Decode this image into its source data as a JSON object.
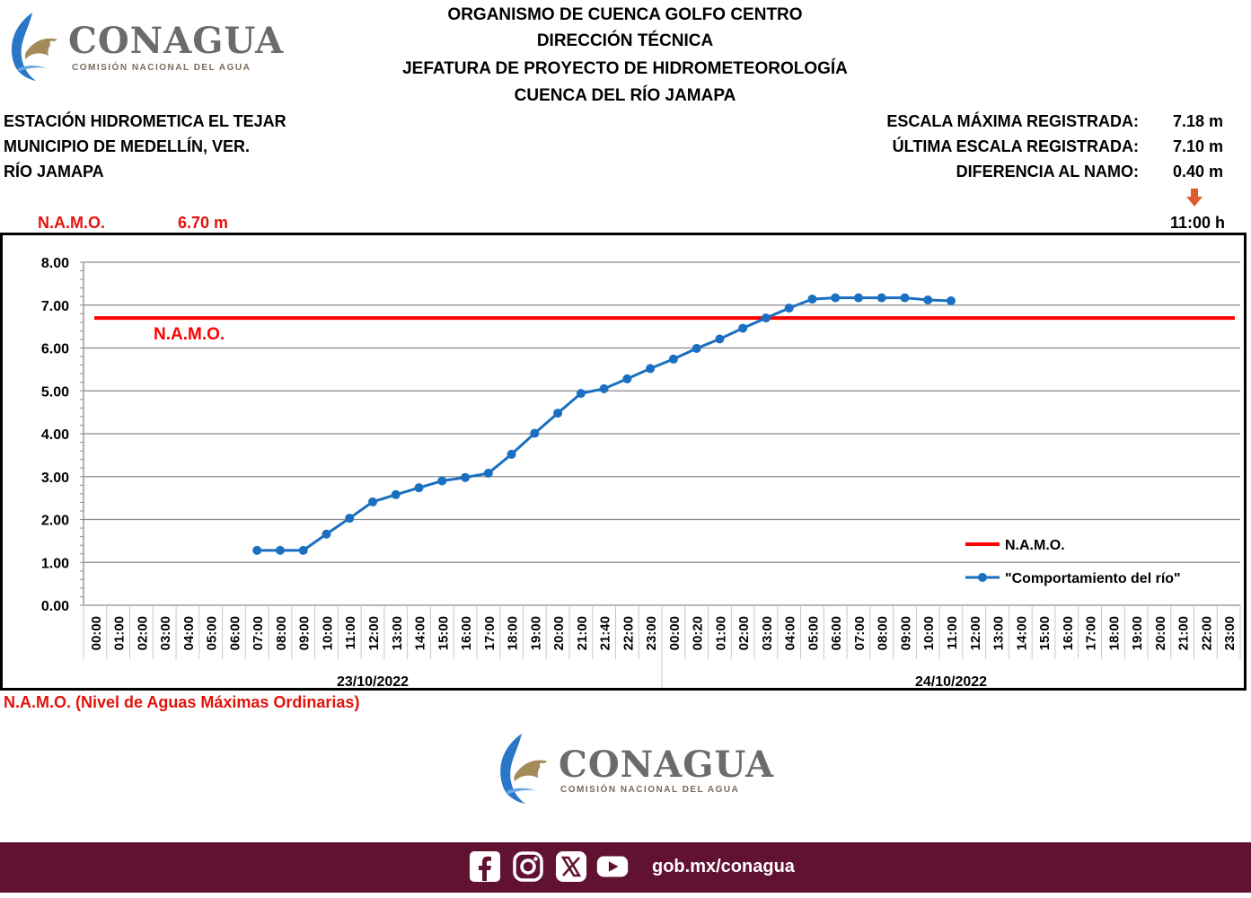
{
  "logo": {
    "word": "CONAGUA",
    "subtitle": "COMISIÓN NACIONAL DEL AGUA"
  },
  "header": {
    "line1": "ORGANISMO DE CUENCA GOLFO CENTRO",
    "line2": "DIRECCIÓN TÉCNICA",
    "line3": "JEFATURA DE PROYECTO DE HIDROMETEOROLOGÍA",
    "line4": "CUENCA DEL RÍO JAMAPA"
  },
  "station": {
    "name": "ESTACIÓN HIDROMETICA EL TEJAR",
    "municipality": "MUNICIPIO DE MEDELLÍN, VER.",
    "river": "RÍO JAMAPA"
  },
  "readings": {
    "max_label": "ESCALA MÁXIMA REGISTRADA:",
    "max_value": "7.18 m",
    "last_label": "ÚLTIMA ESCALA REGISTRADA:",
    "last_value": "7.10 m",
    "diff_label": "DIFERENCIA AL NAMO:",
    "diff_value": "0.40 m",
    "time": "11:00 h"
  },
  "namo": {
    "label": "N.A.M.O.",
    "value": "6.70 m",
    "footnote": "N.A.M.O. (Nivel de Aguas Máximas Ordinarias)"
  },
  "colors": {
    "namo_line": "#ff0000",
    "river_line": "#1a6fc0",
    "footer_bg": "#611232",
    "arrow": "#e05a2b"
  },
  "footer": {
    "url": "gob.mx/conagua",
    "icons": [
      "facebook-icon",
      "instagram-icon",
      "x-icon",
      "youtube-icon"
    ]
  },
  "chart_data": {
    "type": "line",
    "ylim": [
      0,
      8
    ],
    "yticks": [
      "0.00",
      "1.00",
      "2.00",
      "3.00",
      "4.00",
      "5.00",
      "6.00",
      "7.00",
      "8.00"
    ],
    "categories": [
      "00:00",
      "01:00",
      "02:00",
      "03:00",
      "04:00",
      "05:00",
      "06:00",
      "07:00",
      "08:00",
      "09:00",
      "10:00",
      "11:00",
      "12:00",
      "13:00",
      "14:00",
      "15:00",
      "16:00",
      "17:00",
      "18:00",
      "19:00",
      "20:00",
      "21:00",
      "21:40",
      "22:00",
      "23:00",
      "00:00",
      "00:20",
      "01:00",
      "02:00",
      "03:00",
      "04:00",
      "05:00",
      "06:00",
      "07:00",
      "08:00",
      "09:00",
      "10:00",
      "11:00",
      "12:00",
      "13:00",
      "14:00",
      "15:00",
      "16:00",
      "17:00",
      "18:00",
      "19:00",
      "20:00",
      "21:00",
      "22:00",
      "23:00"
    ],
    "groups": [
      {
        "label": "23/10/2022",
        "count": 25
      },
      {
        "label": "24/10/2022",
        "count": 25
      }
    ],
    "series": [
      {
        "name": "N.A.M.O.",
        "values": [
          6.7,
          6.7,
          6.7,
          6.7,
          6.7,
          6.7,
          6.7,
          6.7,
          6.7,
          6.7,
          6.7,
          6.7,
          6.7,
          6.7,
          6.7,
          6.7,
          6.7,
          6.7,
          6.7,
          6.7,
          6.7,
          6.7,
          6.7,
          6.7,
          6.7,
          6.7,
          6.7,
          6.7,
          6.7,
          6.7,
          6.7,
          6.7,
          6.7,
          6.7,
          6.7,
          6.7,
          6.7,
          6.7,
          6.7,
          6.7,
          6.7,
          6.7,
          6.7,
          6.7,
          6.7,
          6.7,
          6.7,
          6.7,
          6.7,
          6.7
        ]
      },
      {
        "name": "\"Comportamiento del río\"",
        "values": [
          null,
          null,
          null,
          null,
          null,
          null,
          null,
          1.28,
          1.28,
          1.28,
          1.66,
          2.03,
          2.41,
          2.58,
          2.74,
          2.9,
          2.98,
          3.08,
          3.52,
          4.01,
          4.48,
          4.94,
          5.05,
          5.28,
          5.52,
          5.74,
          5.99,
          6.21,
          6.46,
          6.7,
          6.93,
          7.14,
          7.17,
          7.17,
          7.17,
          7.17,
          7.12,
          7.1,
          null,
          null,
          null,
          null,
          null,
          null,
          null,
          null,
          null,
          null,
          null,
          null
        ]
      }
    ],
    "annotation": "N.A.M.O."
  }
}
